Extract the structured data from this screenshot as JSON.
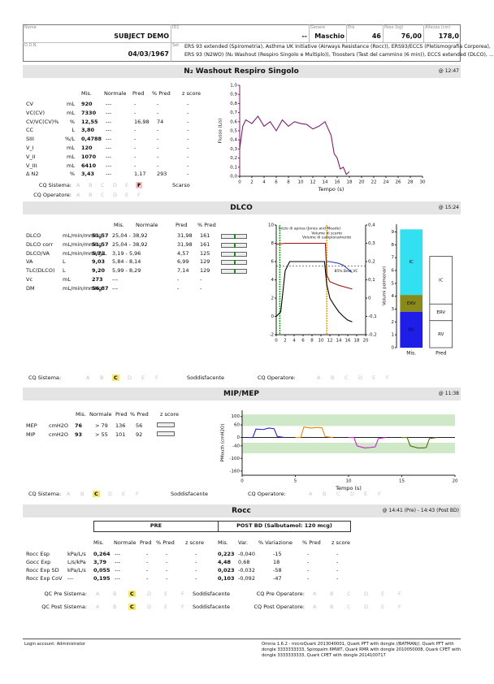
{
  "header": {
    "name_label": "Nome",
    "name": "SUBJECT DEMO",
    "id_label": "ID1",
    "id": "--",
    "gender_label": "Genere",
    "gender": "Maschio",
    "age_label": "Età",
    "age": "46",
    "weight_label": "Peso (kg)",
    "weight": "76,00",
    "height_label": "Altezza (cm)",
    "height": "178,0",
    "dob_label": "D.O.N.",
    "dob": "04/03/1967",
    "set_label": "Set",
    "set_line1": "ERS 93 extended (Spirometria), Asthma UK Initiative (Airways Resistance (Rocc)), ERS93/ECCS (Pletismografia Corporea),",
    "set_line2": "ERS 93 (N2WO) (N₂ Washout (Respiro Singolo e Multiplo)), Troosters (Test del cammino (6 min)), ECCS extended (DLCO), ..."
  },
  "grades": [
    "A",
    "B",
    "C",
    "D",
    "E",
    "F"
  ],
  "n2": {
    "title": "N₂ Washout Respiro Singolo",
    "time": "@ 12:47",
    "headers": [
      "Mis.",
      "Normale",
      "Pred",
      "% Pred",
      "z score"
    ],
    "rows": [
      [
        "CV",
        "mL",
        "920",
        "---",
        "-",
        "-",
        "-"
      ],
      [
        "VC(CV)",
        "mL",
        "7330",
        "---",
        "-",
        "-",
        "-"
      ],
      [
        "CV/VC(CV)%",
        "%",
        "12,55",
        "---",
        "16,98",
        "74",
        "-"
      ],
      [
        "CC",
        "L",
        "3,80",
        "---",
        "-",
        "-",
        "-"
      ],
      [
        "SIII",
        "%/L",
        "0,4788",
        "---",
        "-",
        "-",
        "-"
      ],
      [
        "V_I",
        "mL",
        "120",
        "---",
        "-",
        "-",
        "-"
      ],
      [
        "V_II",
        "mL",
        "1070",
        "---",
        "-",
        "-",
        "-"
      ],
      [
        "V_III",
        "mL",
        "6410",
        "---",
        "-",
        "-",
        "-"
      ],
      [
        "Δ N2",
        "%",
        "3,43",
        "---",
        "1,17",
        "293",
        "-"
      ]
    ],
    "qc_system": {
      "label": "CQ Sistema:",
      "grade": "F",
      "verdict": "Scarso",
      "color": "#f6c4c4"
    },
    "qc_operator": {
      "label": "CQ Operatore:"
    },
    "chart": {
      "type": "line",
      "ylabel": "Flusso (L/s)",
      "xlabel": "Tempo (s)",
      "xlim": [
        0,
        30
      ],
      "xticks": [
        0,
        2,
        4,
        6,
        8,
        10,
        12,
        14,
        16,
        18,
        20,
        22,
        24,
        26,
        28,
        30
      ],
      "ylim": [
        0,
        1
      ],
      "yticks": [
        {
          "value": 0,
          "label": "0,0"
        },
        {
          "value": 0.1,
          "label": "0,1"
        },
        {
          "value": 0.2,
          "label": "0,2"
        },
        {
          "value": 0.3,
          "label": "0,3"
        },
        {
          "value": 0.4,
          "label": "0,4"
        },
        {
          "value": 0.5,
          "label": "0,5"
        },
        {
          "value": 0.6,
          "label": "0,6"
        },
        {
          "value": 0.7,
          "label": "0,7"
        },
        {
          "value": 0.8,
          "label": "0,8"
        },
        {
          "value": 0.9,
          "label": "0,9"
        },
        {
          "value": 1,
          "label": "1,0"
        }
      ],
      "axis_color": "#7b1f6e",
      "series": [
        {
          "color": "#7b1f6e",
          "x": [
            0,
            0.5,
            1,
            2,
            3,
            4,
            5,
            6,
            7,
            8,
            9,
            10,
            11,
            12,
            13,
            14,
            15,
            15.5,
            16,
            16.5,
            17,
            17.5,
            18
          ],
          "values": [
            0.3,
            0.55,
            0.62,
            0.58,
            0.66,
            0.55,
            0.6,
            0.5,
            0.62,
            0.55,
            0.6,
            0.58,
            0.57,
            0.52,
            0.55,
            0.6,
            0.45,
            0.25,
            0.2,
            0.08,
            0.1,
            0.02,
            0.05
          ]
        }
      ]
    }
  },
  "dlco": {
    "title": "DLCO",
    "time": "@ 15:24",
    "headers": [
      "Mis.",
      "Normale",
      "Pred",
      "% Pred"
    ],
    "rows": [
      [
        "DLCO",
        "mL/min/mmHg",
        "51,57",
        "25,04 - 38,92",
        "31,98",
        "161"
      ],
      [
        "DLCO corr",
        "mL/min/mmHg",
        "51,57",
        "25,04 - 38,92",
        "31,98",
        "161"
      ],
      [
        "DLCO/VA",
        "mL/min/mmHg/L",
        "5,71",
        "3,19 - 5,96",
        "4,57",
        "125"
      ],
      [
        "VA",
        "L",
        "9,03",
        "5,84 - 8,14",
        "6,99",
        "129"
      ],
      [
        "TLC(DLCO)",
        "L",
        "9,20",
        "5,99 - 8,29",
        "7,14",
        "129"
      ],
      [
        "Vc",
        "mL",
        "273",
        "---",
        "-",
        "-"
      ],
      [
        "DM",
        "mL/min/mmHg",
        "56,87",
        "---",
        "-",
        "-"
      ]
    ],
    "qc_system": {
      "label": "CQ Sistema:",
      "grade": "C",
      "verdict": "Soddisfacente",
      "color": "#f5e67a"
    },
    "qc_operator": {
      "label": "CQ Operatore:"
    },
    "chart": {
      "type": "line",
      "xlim": [
        0,
        20
      ],
      "xticks": [
        0,
        2,
        4,
        6,
        8,
        10,
        12,
        14,
        16,
        18,
        20
      ],
      "ylim": [
        -2,
        10
      ],
      "yticks": [
        -2,
        0,
        2,
        4,
        6,
        8,
        10
      ],
      "y2lim": [
        -0.2,
        0.4
      ],
      "y2ticks": [
        {
          "value": -0.2,
          "label": "-0,2"
        },
        {
          "value": -0.1,
          "label": "-0,1"
        },
        0,
        {
          "value": 0.1,
          "label": "0,1"
        },
        {
          "value": 0.2,
          "label": "0,2"
        },
        {
          "value": 0.3,
          "label": "0,3"
        },
        {
          "value": 0.4,
          "label": "0,4"
        }
      ],
      "annotations": [
        "Inizio di apnea (Jones and Meade)",
        "Volume di scarto",
        "Volume di campionamento",
        "85% Best VC"
      ],
      "vlines": [
        {
          "x": 0.8,
          "color": "#2a9a2a"
        },
        {
          "x": 11.3,
          "color": "#e8a020"
        }
      ],
      "hline": {
        "y": 5.5,
        "color": "#000000"
      },
      "series": [
        {
          "color": "#000000",
          "x": [
            0,
            1,
            2,
            3,
            4,
            6,
            8,
            10,
            10.8,
            11.3,
            12,
            13,
            14,
            15,
            16,
            17
          ],
          "values": [
            0,
            0.5,
            5,
            6,
            6,
            6,
            6,
            6,
            6,
            3.5,
            2,
            1.2,
            0.5,
            0,
            -0.4,
            -0.6
          ]
        },
        {
          "color": "#9a1010",
          "x": [
            0,
            2,
            4,
            6,
            8,
            10,
            11,
            11.3,
            12,
            14,
            17
          ],
          "values": [
            7.9,
            8,
            8,
            8,
            8,
            8,
            8,
            4.5,
            3.8,
            3.4,
            3
          ]
        },
        {
          "color": "#2233bb",
          "x": [
            11.3,
            12,
            13,
            14,
            15,
            16,
            17
          ],
          "values": [
            6,
            6,
            5.9,
            5.8,
            5.6,
            5.2,
            4.8
          ]
        }
      ]
    },
    "volumes": {
      "type": "stacked_bar",
      "ylabel": "Volumi polmonari",
      "categories": [
        "Mis.",
        "Pred"
      ],
      "ylim": [
        0,
        9.6
      ],
      "yticks": [
        0,
        1,
        2,
        3,
        4,
        5,
        6,
        7,
        8,
        9
      ],
      "series": [
        {
          "name": "RV",
          "colors": [
            "#1e1ee8",
            "#ffffff"
          ],
          "values": [
            2.8,
            2.1
          ]
        },
        {
          "name": "ERV",
          "colors": [
            "#8a8a1a",
            "#ffffff"
          ],
          "values": [
            1.3,
            1.3
          ]
        },
        {
          "name": "IC",
          "colors": [
            "#33e0f2",
            "#ffffff"
          ],
          "values": [
            5.1,
            3.7
          ]
        }
      ]
    }
  },
  "mip": {
    "title": "MIP/MEP",
    "time": "@ 11:38",
    "headers": [
      "Mis.",
      "Normale",
      "Pred",
      "% Pred",
      "z score"
    ],
    "rows": [
      [
        "MEP",
        "cmH2O",
        "76",
        "> 79",
        "136",
        "56"
      ],
      [
        "MIP",
        "cmH2O",
        "93",
        "> 55",
        "101",
        "92"
      ]
    ],
    "qc_system": {
      "label": "CQ Sistema:",
      "grade": "C",
      "verdict": "Soddisfacente",
      "color": "#f5e67a"
    },
    "qc_operator": {
      "label": "CQ Operatore:"
    },
    "chart": {
      "type": "line",
      "ylabel": "PMouth (cmH2O)",
      "xlabel": "Tempo (s)",
      "xlim": [
        0,
        20
      ],
      "xticks": [
        0,
        5,
        10,
        15,
        20
      ],
      "ylim": [
        -180,
        130
      ],
      "yticks": [
        -160,
        -100,
        -40,
        0,
        60,
        100
      ],
      "bands": [
        [
          55,
          110
        ],
        [
          -75,
          -25
        ]
      ],
      "band_color": "#cfe8c8",
      "series": [
        {
          "color": "#2222cc",
          "x": [
            0.5,
            1,
            1.3,
            2,
            2.5,
            3,
            3.3,
            4
          ],
          "values": [
            0,
            0,
            40,
            38,
            45,
            42,
            5,
            0
          ]
        },
        {
          "color": "#e08a10",
          "x": [
            5,
            5.5,
            5.8,
            6.5,
            7,
            7.5,
            7.8,
            8.5
          ],
          "values": [
            0,
            0,
            50,
            45,
            48,
            46,
            5,
            0
          ]
        },
        {
          "color": "#cc22cc",
          "x": [
            10,
            10.5,
            10.8,
            11.5,
            12,
            12.5,
            12.8,
            13.5
          ],
          "values": [
            0,
            0,
            -40,
            -50,
            -48,
            -45,
            -5,
            0
          ]
        },
        {
          "color": "#556b10",
          "x": [
            15,
            15.5,
            15.8,
            16.5,
            17,
            17.3,
            17.6,
            18.3
          ],
          "values": [
            0,
            0,
            -40,
            -50,
            -50,
            -48,
            -5,
            0
          ]
        }
      ]
    }
  },
  "rocc": {
    "title": "Rocc",
    "time": "@ 14:41 (Pre) - 14:43 (Post BD)",
    "pre": "PRE",
    "post": "POST BD (Salbutamol: 120 mcg)",
    "headers_pre": [
      "Mis.",
      "Normale",
      "Pred",
      "% Pred",
      "z score"
    ],
    "headers_post": [
      "Mis.",
      "Var.",
      "% Variazione",
      "% Pred",
      "z score"
    ],
    "rows": [
      [
        "Rocc Esp",
        "kPa/L/s",
        "0,264",
        "---",
        "-",
        "-",
        "-",
        "0,223",
        "-0,040",
        "-15",
        "-",
        "-"
      ],
      [
        "Gocc Exp",
        "L/s/kPa",
        "3,79",
        "---",
        "-",
        "-",
        "-",
        "4,48",
        "0,68",
        "18",
        "-",
        "-"
      ],
      [
        "Rocc Exp SD",
        "kPa/L/s",
        "0,055",
        "---",
        "-",
        "-",
        "-",
        "0,023",
        "-0,032",
        "-58",
        "-",
        "-"
      ],
      [
        "Rocc Exp CoV",
        "---",
        "0,195",
        "---",
        "-",
        "-",
        "-",
        "0,103",
        "-0,092",
        "-47",
        "-",
        "-"
      ]
    ],
    "qc_pre_system": {
      "label": "QC Pre Sistema:",
      "grade": "C",
      "verdict": "Soddisfacente",
      "color": "#f5e67a"
    },
    "qc_pre_operator": {
      "label": "CQ Pre Operatore:"
    },
    "qc_post_system": {
      "label": "QC Post Sistema:",
      "grade": "C",
      "verdict": "Soddisfacente",
      "color": "#f5e67a"
    },
    "qc_post_operator": {
      "label": "CQ Post Operatore:"
    }
  },
  "footer": {
    "login": "Login account: Administrator",
    "info": "Omnia 1.6.2 - microQuark 2013040001, Quark PFT with dongle //BATMAN//, Quark PFT with dongle 3333333333, Spiropalm 6MWT, Quark RMR with dongle 2010050008, Quark CPET with dongle 3333333333, Quark CPET with dongle 2014100717"
  }
}
